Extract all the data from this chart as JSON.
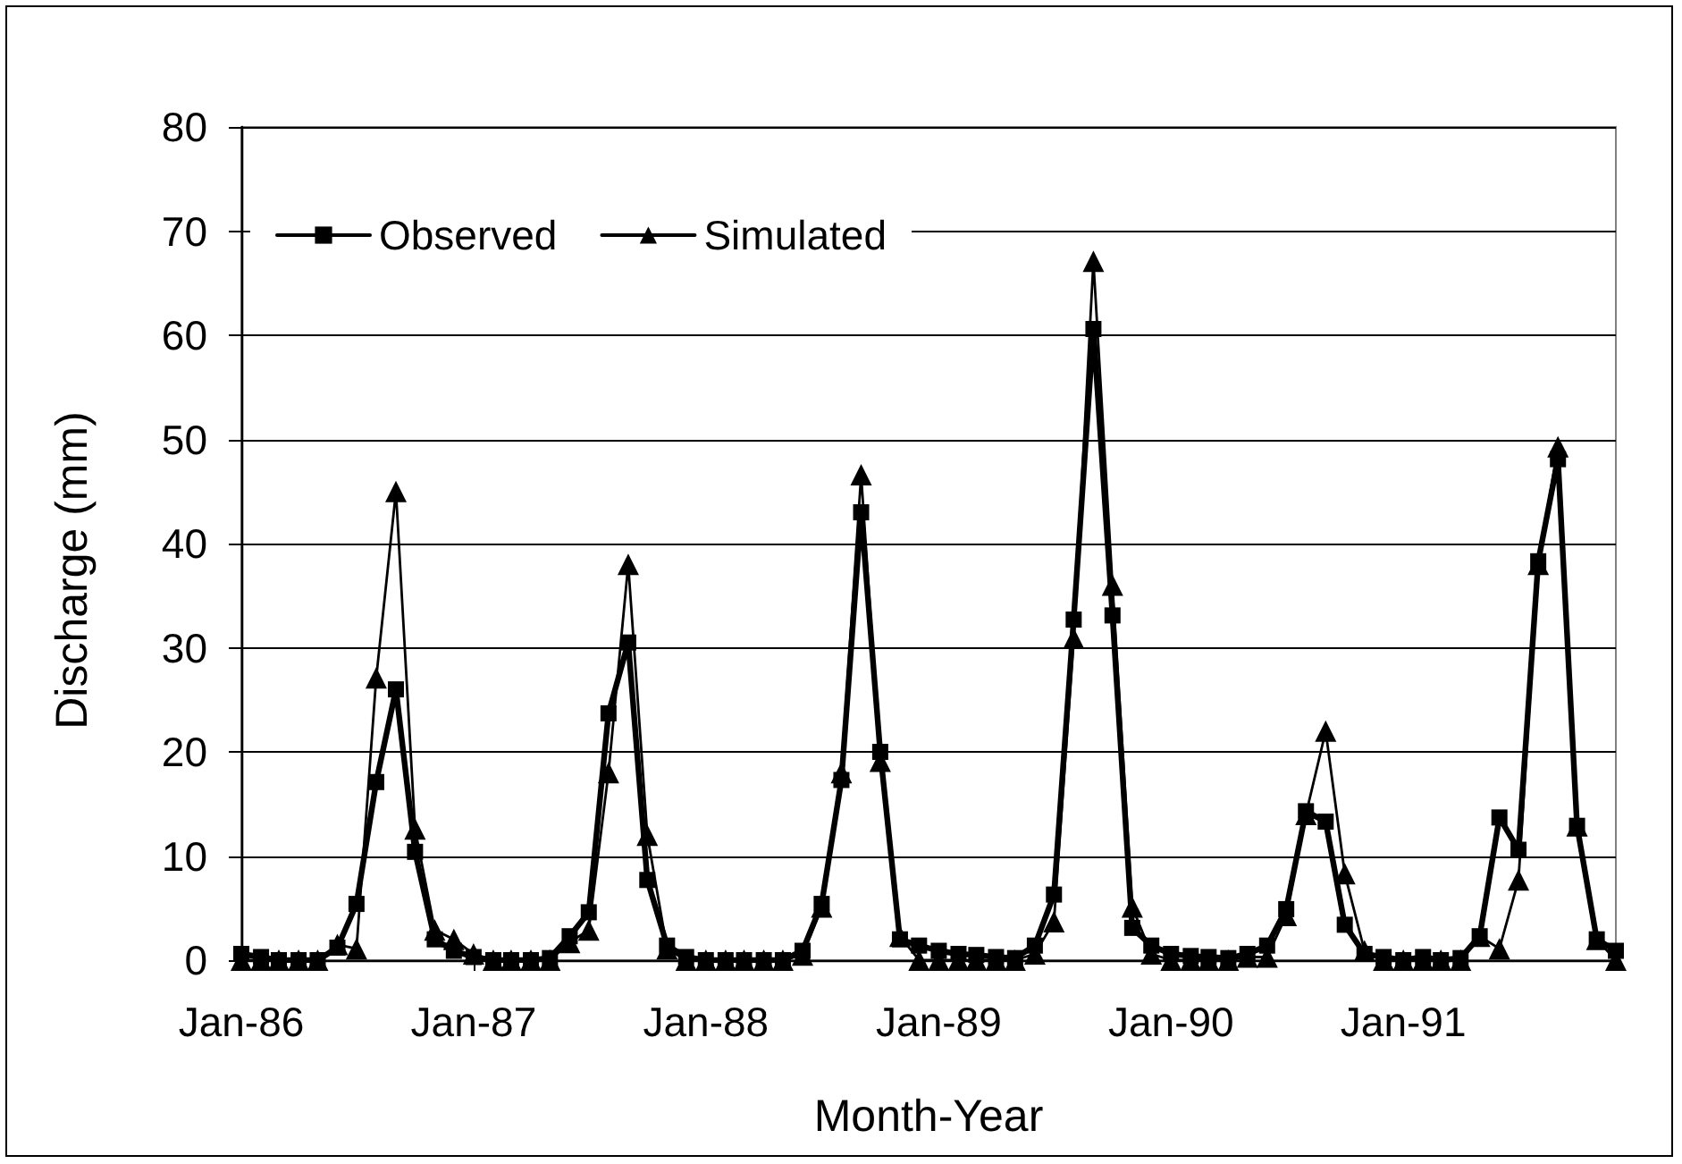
{
  "chart_data": {
    "type": "line",
    "xlabel": "Month-Year",
    "ylabel": "Discharge (mm)",
    "x": [
      "1986-01",
      "1986-02",
      "1986-03",
      "1986-04",
      "1986-05",
      "1986-06",
      "1986-07",
      "1986-08",
      "1986-09",
      "1986-10",
      "1986-11",
      "1986-12",
      "1987-01",
      "1987-02",
      "1987-03",
      "1987-04",
      "1987-05",
      "1987-06",
      "1987-07",
      "1987-08",
      "1987-09",
      "1987-10",
      "1987-11",
      "1987-12",
      "1988-01",
      "1988-02",
      "1988-03",
      "1988-04",
      "1988-05",
      "1988-06",
      "1988-07",
      "1988-08",
      "1988-09",
      "1988-10",
      "1988-11",
      "1988-12",
      "1989-01",
      "1989-02",
      "1989-03",
      "1989-04",
      "1989-05",
      "1989-06",
      "1989-07",
      "1989-08",
      "1989-09",
      "1989-10",
      "1989-11",
      "1989-12",
      "1990-01",
      "1990-02",
      "1990-03",
      "1990-04",
      "1990-05",
      "1990-06",
      "1990-07",
      "1990-08",
      "1990-09",
      "1990-10",
      "1990-11",
      "1990-12",
      "1991-01",
      "1991-02",
      "1991-03",
      "1991-04",
      "1991-05",
      "1991-06",
      "1991-07",
      "1991-08",
      "1991-09",
      "1991-10",
      "1991-11",
      "1991-12"
    ],
    "xlim": [
      "1986-01",
      "1991-12"
    ],
    "xticks": [
      {
        "value": "1986-01",
        "label": "Jan-86"
      },
      {
        "value": "1987-01",
        "label": "Jan-87"
      },
      {
        "value": "1988-01",
        "label": "Jan-88"
      },
      {
        "value": "1989-01",
        "label": "Jan-89"
      },
      {
        "value": "1990-01",
        "label": "Jan-90"
      },
      {
        "value": "1991-01",
        "label": "Jan-91"
      }
    ],
    "ylim": [
      0,
      80
    ],
    "yticks": [
      0,
      10,
      20,
      30,
      40,
      50,
      60,
      70,
      80
    ],
    "grid": "y",
    "legend": "top left",
    "series": [
      {
        "name": "Observed",
        "color": "#000000",
        "marker": "square",
        "values": [
          0.6,
          0.3,
          0,
          0,
          0,
          1.2,
          5.4,
          17.1,
          26.0,
          10.4,
          2.0,
          0.9,
          0.3,
          0,
          0,
          0,
          0.2,
          2.3,
          4.6,
          23.7,
          30.5,
          7.7,
          1.4,
          0.3,
          0,
          0,
          0,
          0,
          0,
          0.9,
          5.4,
          17.3,
          43.0,
          20.0,
          2.0,
          1.4,
          0.9,
          0.6,
          0.5,
          0.3,
          0.2,
          1.4,
          6.3,
          32.7,
          60.6,
          33.1,
          3.1,
          1.4,
          0.6,
          0.4,
          0.3,
          0.2,
          0.6,
          1.4,
          4.9,
          14.3,
          13.3,
          3.4,
          0.6,
          0.3,
          0,
          0.3,
          0,
          0.2,
          2.3,
          13.7,
          10.6,
          38.3,
          48.1,
          12.9,
          2.0,
          0.9
        ]
      },
      {
        "name": "Simulated",
        "color": "#000000",
        "marker": "triangle",
        "values": [
          0,
          0,
          0,
          0,
          0,
          1.5,
          1.1,
          27.1,
          45.0,
          12.6,
          2.9,
          2.0,
          0.6,
          0,
          0,
          0,
          0,
          1.7,
          2.9,
          18.0,
          38.0,
          12.0,
          1.1,
          0,
          0,
          0,
          0,
          0,
          0,
          0.5,
          5.1,
          18.0,
          46.6,
          19.1,
          2.3,
          0,
          0,
          0,
          0,
          0,
          0,
          0.6,
          3.7,
          30.9,
          67.1,
          36.0,
          5.1,
          0.6,
          0,
          0,
          0,
          0,
          0.3,
          0.3,
          4.3,
          14.0,
          22.0,
          8.3,
          0.9,
          0,
          0,
          0,
          0,
          0,
          2.3,
          1.1,
          7.7,
          38.0,
          49.3,
          12.9,
          2.0,
          0
        ]
      }
    ]
  }
}
